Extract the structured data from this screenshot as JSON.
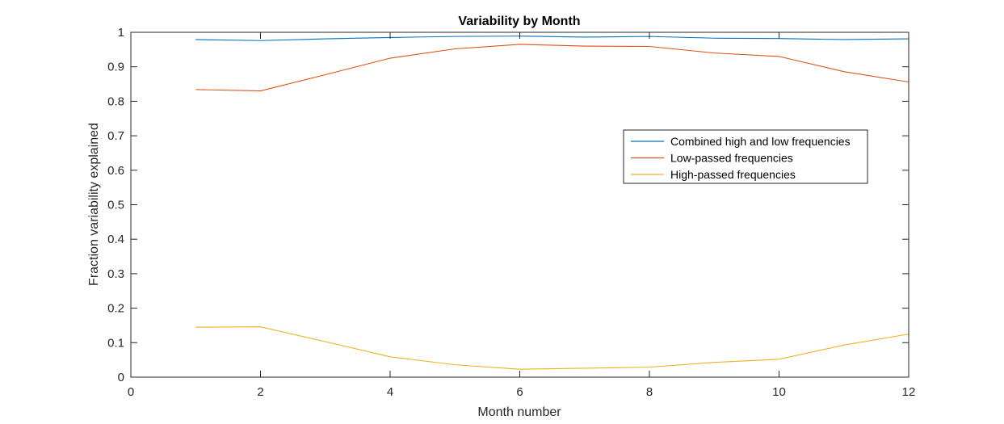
{
  "chart_data": {
    "type": "line",
    "title": "Variability by Month",
    "xlabel": "Month number",
    "ylabel": "Fraction variability explained",
    "xlim": [
      0,
      12
    ],
    "ylim": [
      0,
      1
    ],
    "xticks": [
      0,
      2,
      4,
      6,
      8,
      10,
      12
    ],
    "yticks": [
      0,
      0.1,
      0.2,
      0.3,
      0.4,
      0.5,
      0.6,
      0.7,
      0.8,
      0.9,
      1
    ],
    "x": [
      1,
      2,
      3,
      4,
      5,
      6,
      7,
      8,
      9,
      10,
      11,
      12
    ],
    "grid": false,
    "legend_position": "right",
    "series": [
      {
        "name": "Combined high and low frequencies",
        "color": "#0072BD",
        "values": [
          0.979,
          0.976,
          0.981,
          0.985,
          0.988,
          0.989,
          0.986,
          0.988,
          0.983,
          0.982,
          0.979,
          0.981
        ]
      },
      {
        "name": "Low-passed frequencies",
        "color": "#D95319",
        "values": [
          0.834,
          0.83,
          0.877,
          0.925,
          0.952,
          0.965,
          0.96,
          0.959,
          0.94,
          0.93,
          0.886,
          0.856
        ]
      },
      {
        "name": "High-passed frequencies",
        "color": "#EDB120",
        "values": [
          0.145,
          0.146,
          0.103,
          0.059,
          0.036,
          0.023,
          0.026,
          0.029,
          0.043,
          0.052,
          0.093,
          0.125
        ]
      }
    ]
  }
}
